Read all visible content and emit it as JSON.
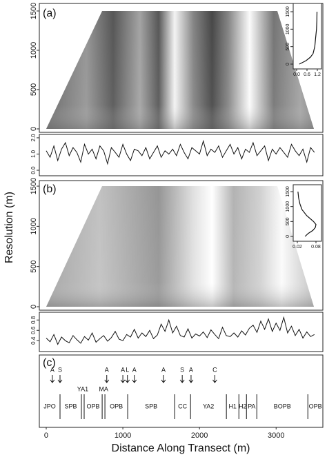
{
  "chart_data": [
    {
      "type": "heatmap",
      "panel_label": "(a)",
      "ylabel": "Resolution (m)",
      "ylim": [
        -44,
        1596
      ],
      "yticks": [
        0,
        500,
        1000,
        1500
      ]
    },
    {
      "type": "line",
      "x": [
        0.15,
        0.35,
        0.55,
        0.8,
        0.95,
        1.05,
        1.1,
        1.15,
        1.17,
        1.18
      ],
      "y": [
        0,
        50,
        100,
        200,
        300,
        500,
        750,
        1000,
        1250,
        1500
      ],
      "xlim": [
        -0.2,
        1.44
      ],
      "ylim": [
        -138,
        1737
      ],
      "xticks": [
        {
          "value": 0,
          "label": "0.0"
        },
        0.6,
        1.2
      ],
      "yticks": [
        0,
        500,
        1000,
        1500
      ]
    },
    {
      "type": "line",
      "x": [
        0,
        50,
        100,
        150,
        200,
        250,
        300,
        350,
        400,
        450,
        500,
        550,
        600,
        650,
        700,
        750,
        800,
        850,
        900,
        950,
        1000,
        1050,
        1100,
        1150,
        1200,
        1250,
        1300,
        1350,
        1400,
        1450,
        1500,
        1550,
        1600,
        1650,
        1700,
        1750,
        1800,
        1850,
        1900,
        1950,
        2000,
        2050,
        2100,
        2150,
        2200,
        2250,
        2300,
        2350,
        2400,
        2450,
        2500,
        2550,
        2600,
        2650,
        2700,
        2750,
        2800,
        2850,
        2900,
        2950,
        3000,
        3050,
        3100,
        3150,
        3200,
        3250,
        3300,
        3350,
        3400,
        3450,
        3500
      ],
      "values": [
        1.2,
        0.8,
        1.5,
        0.6,
        1.3,
        1.7,
        0.9,
        1.4,
        1.1,
        0.5,
        1.6,
        1.0,
        1.3,
        0.7,
        1.5,
        1.2,
        0.4,
        1.4,
        1.1,
        0.8,
        1.6,
        1.0,
        0.6,
        1.3,
        1.2,
        0.9,
        1.4,
        0.7,
        1.1,
        1.5,
        0.8,
        1.2,
        1.0,
        1.3,
        0.9,
        1.6,
        1.1,
        0.7,
        1.4,
        1.2,
        1.0,
        1.8,
        0.9,
        1.3,
        1.1,
        1.5,
        0.8,
        1.2,
        1.6,
        1.0,
        1.4,
        0.7,
        1.3,
        1.1,
        1.7,
        0.9,
        1.2,
        1.5,
        0.6,
        1.3,
        1.0,
        1.4,
        1.1,
        0.8,
        1.6,
        1.2,
        0.9,
        1.3,
        0.5,
        1.4,
        1.1
      ],
      "xlim": [
        -90,
        3610
      ],
      "ylim": [
        -0.34,
        2.21
      ],
      "yticks": [
        {
          "value": 0,
          "label": "0.0"
        },
        {
          "value": 1,
          "label": "1.0"
        },
        {
          "value": 2,
          "label": "2.0"
        }
      ]
    },
    {
      "type": "heatmap",
      "panel_label": "(b)",
      "ylim": [
        -43,
        1569
      ],
      "yticks": [
        0,
        500,
        1000,
        1500
      ]
    },
    {
      "type": "line",
      "x": [
        0.045,
        0.055,
        0.07,
        0.078,
        0.08,
        0.072,
        0.05,
        0.035,
        0.028,
        0.024,
        0.022
      ],
      "y": [
        0,
        100,
        200,
        300,
        400,
        500,
        700,
        900,
        1100,
        1300,
        1500
      ],
      "xlim": [
        0.0067,
        0.0978
      ],
      "ylim": [
        -162,
        1731
      ],
      "xticks": [
        0.02,
        0.08
      ],
      "yticks": [
        0,
        500,
        1000,
        1500
      ]
    },
    {
      "type": "line",
      "x": [
        0,
        50,
        100,
        150,
        200,
        250,
        300,
        350,
        400,
        450,
        500,
        550,
        600,
        650,
        700,
        750,
        800,
        850,
        900,
        950,
        1000,
        1050,
        1100,
        1150,
        1200,
        1250,
        1300,
        1350,
        1400,
        1450,
        1500,
        1550,
        1600,
        1650,
        1700,
        1750,
        1800,
        1850,
        1900,
        1950,
        2000,
        2050,
        2100,
        2150,
        2200,
        2250,
        2300,
        2350,
        2400,
        2450,
        2500,
        2550,
        2600,
        2650,
        2700,
        2750,
        2800,
        2850,
        2900,
        2950,
        3000,
        3050,
        3100,
        3150,
        3200,
        3250,
        3300,
        3350,
        3400,
        3450,
        3500
      ],
      "values": [
        0.45,
        0.38,
        0.52,
        0.33,
        0.47,
        0.4,
        0.36,
        0.5,
        0.42,
        0.35,
        0.48,
        0.41,
        0.55,
        0.37,
        0.44,
        0.5,
        0.39,
        0.46,
        0.58,
        0.43,
        0.4,
        0.52,
        0.47,
        0.62,
        0.45,
        0.55,
        0.48,
        0.6,
        0.44,
        0.51,
        0.72,
        0.58,
        0.8,
        0.55,
        0.68,
        0.5,
        0.47,
        0.63,
        0.45,
        0.53,
        0.49,
        0.57,
        0.46,
        0.61,
        0.52,
        0.44,
        0.66,
        0.5,
        0.48,
        0.55,
        0.47,
        0.59,
        0.51,
        0.64,
        0.7,
        0.56,
        0.78,
        0.62,
        0.82,
        0.58,
        0.74,
        0.6,
        0.85,
        0.55,
        0.68,
        0.5,
        0.62,
        0.45,
        0.57,
        0.48,
        0.52
      ],
      "xlim": [
        -90,
        3610
      ],
      "ylim": [
        0.19,
        0.95
      ],
      "yticks": [
        0.4,
        0.6,
        0.8
      ]
    },
    {
      "type": "annotations",
      "panel_label": "(c)",
      "xlabel": "Distance Along Transect (m)",
      "xlim": [
        -90,
        3610
      ],
      "xticks": [
        0,
        1000,
        2000,
        3000
      ],
      "events": [
        {
          "label": "A",
          "x": 80
        },
        {
          "label": "S",
          "x": 180
        },
        {
          "label": "A",
          "x": 790
        },
        {
          "label": "A",
          "x": 1000
        },
        {
          "label": "L",
          "x": 1060
        },
        {
          "label": "A",
          "x": 1150
        },
        {
          "label": "A",
          "x": 1530
        },
        {
          "label": "S",
          "x": 1775
        },
        {
          "label": "A",
          "x": 1890
        },
        {
          "label": "C",
          "x": 2200
        }
      ],
      "boundaries": [
        180,
        459,
        495,
        730,
        766,
        1063,
        1676,
        1883,
        2351,
        2514,
        2613,
        2748,
        3414
      ],
      "segments": [
        "JPO",
        "SPB",
        "YA1",
        "OPB",
        "MA",
        "OPB",
        "SPB",
        "CC",
        "YA2",
        "H1",
        "H2",
        "PA",
        "BOPB",
        "OPB"
      ]
    }
  ]
}
